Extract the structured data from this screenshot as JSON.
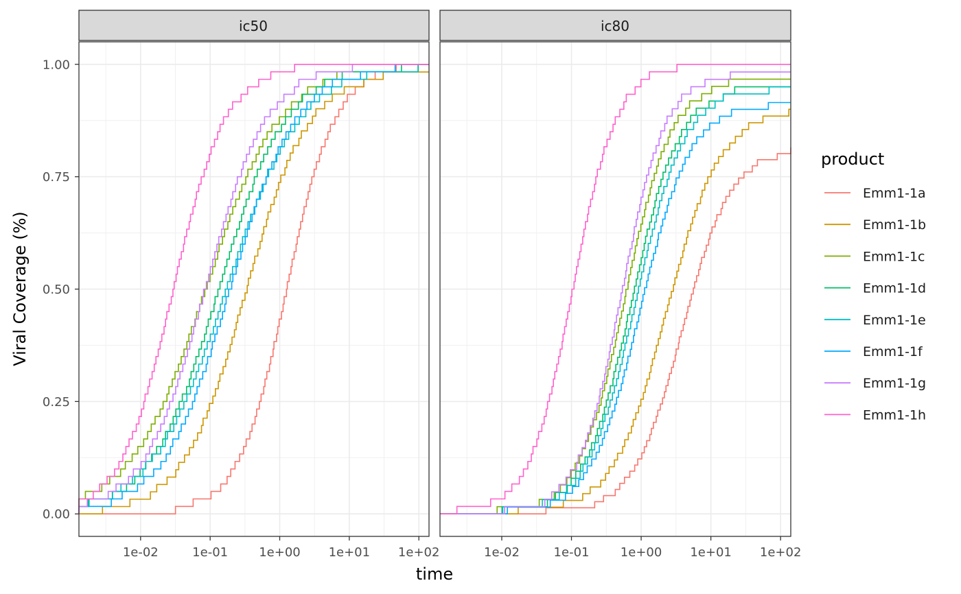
{
  "chart_data": {
    "type": "line",
    "subtype": "step-ecdf",
    "facets": [
      "ic50",
      "ic80"
    ],
    "xlabel": "time",
    "ylabel": "Viral Coverage (%)",
    "x_scale": "log10",
    "xlim": [
      0.0013,
      140
    ],
    "ylim": [
      -0.05,
      1.05
    ],
    "x_ticks": [
      0.01,
      0.1,
      1,
      10,
      100
    ],
    "x_tick_labels": [
      "1e-02",
      "1e-01",
      "1e+00",
      "1e+01",
      "1e+02"
    ],
    "y_ticks": [
      0,
      0.25,
      0.5,
      0.75,
      1
    ],
    "y_tick_labels": [
      "0.00",
      "0.25",
      "0.50",
      "0.75",
      "1.00"
    ],
    "grid": true,
    "legend": {
      "title": "product",
      "position": "right",
      "entries": [
        "Emm1-1a",
        "Emm1-1b",
        "Emm1-1c",
        "Emm1-1d",
        "Emm1-1e",
        "Emm1-1f",
        "Emm1-1g",
        "Emm1-1h"
      ]
    },
    "colors": [
      "#F8766D",
      "#CD9600",
      "#7CAE00",
      "#00BE67",
      "#00BFC4",
      "#00A9FF",
      "#C77CFF",
      "#FF61CC"
    ],
    "panels": [
      {
        "facet": "ic50",
        "series": [
          {
            "name": "Emm1-1a",
            "x0": 0.2,
            "x1": 8,
            "y_final": 1.0
          },
          {
            "name": "Emm1-1b",
            "x0": 0.03,
            "x1": 3.5,
            "y_final": 0.983
          },
          {
            "name": "Emm1-1c",
            "x0": 0.005,
            "x1": 1.5,
            "y_final": 1.0
          },
          {
            "name": "Emm1-1d",
            "x0": 0.01,
            "x1": 1.8,
            "y_final": 1.0
          },
          {
            "name": "Emm1-1e",
            "x0": 0.01,
            "x1": 3,
            "y_final": 1.0
          },
          {
            "name": "Emm1-1f",
            "x0": 0.015,
            "x1": 2.5,
            "y_final": 1.0
          },
          {
            "name": "Emm1-1g",
            "x0": 0.008,
            "x1": 0.9,
            "y_final": 1.0
          },
          {
            "name": "Emm1-1h",
            "x0": 0.004,
            "x1": 0.22,
            "y_final": 1.0
          }
        ]
      },
      {
        "facet": "ic80",
        "series": [
          {
            "name": "Emm1-1a",
            "x0": 0.6,
            "x1": 25,
            "y_final": 0.815
          },
          {
            "name": "Emm1-1b",
            "x0": 0.3,
            "x1": 18,
            "y_final": 0.9
          },
          {
            "name": "Emm1-1c",
            "x0": 0.1,
            "x1": 3.5,
            "y_final": 0.967
          },
          {
            "name": "Emm1-1d",
            "x0": 0.12,
            "x1": 4.5,
            "y_final": 0.95
          },
          {
            "name": "Emm1-1e",
            "x0": 0.13,
            "x1": 5.5,
            "y_final": 0.95
          },
          {
            "name": "Emm1-1f",
            "x0": 0.15,
            "x1": 6.5,
            "y_final": 0.915
          },
          {
            "name": "Emm1-1g",
            "x0": 0.1,
            "x1": 2.8,
            "y_final": 0.983
          },
          {
            "name": "Emm1-1h",
            "x0": 0.02,
            "x1": 0.55,
            "y_final": 1.0
          }
        ]
      }
    ]
  }
}
